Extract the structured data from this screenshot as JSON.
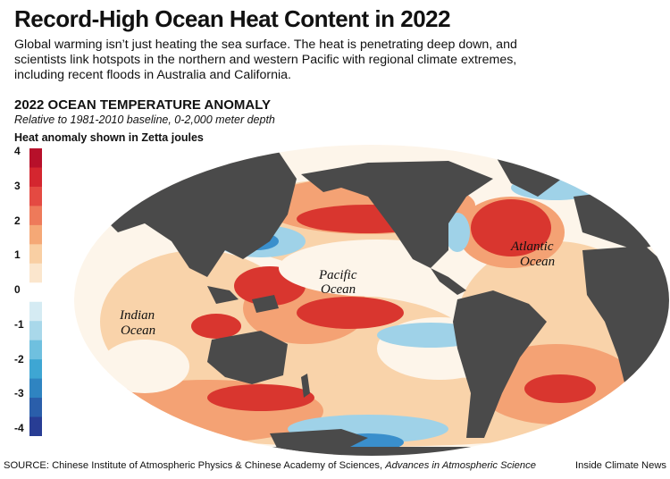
{
  "header": {
    "title": "Record-High Ocean Heat Content in 2022",
    "subtitle": "Global warming isn’t just heating the sea surface. The heat is penetrating deep down, and scientists link hotspots in the northern and western Pacific with regional climate extremes, including recent floods in Australia and California."
  },
  "chart": {
    "title": "2022 OCEAN TEMPERATURE ANOMALY",
    "subtitle": "Relative to 1981-2010 baseline, 0-2,000 meter depth",
    "legend_title": "Heat anomaly shown in Zetta joules"
  },
  "legend": {
    "ticks": [
      "4",
      "3",
      "2",
      "1",
      "0",
      "-1",
      "-2",
      "-3",
      "-4"
    ],
    "colors": [
      "#b7102a",
      "#d4262f",
      "#e44a42",
      "#ee7a5a",
      "#f5a876",
      "#f9cfa3",
      "#fbe6cd",
      "#ffffff",
      "#d5ebf3",
      "#a9d8ea",
      "#6fc0df",
      "#3ea6d3",
      "#2f84c1",
      "#2a5eaa",
      "#283d94"
    ]
  },
  "map": {
    "labels": {
      "pacific_1": "Pacific",
      "pacific_2": "Ocean",
      "atlantic_1": "Atlantic",
      "atlantic_2": "Ocean",
      "indian_1": "Indian",
      "indian_2": "Ocean"
    },
    "colors": {
      "land": "#4a4a4a",
      "warm_strong": "#d9362f",
      "warm": "#f4a274",
      "warm_light": "#f9d3aa",
      "cool": "#9fd2e8",
      "cool_strong": "#3a8fcc",
      "neutral": "#fdf5ea"
    }
  },
  "footer": {
    "source_prefix": "SOURCE: Chinese Institute of Atmospheric Physics & Chinese Academy of Sciences, ",
    "source_journal": "Advances in Atmospheric Science",
    "credit": "Inside Climate News"
  }
}
